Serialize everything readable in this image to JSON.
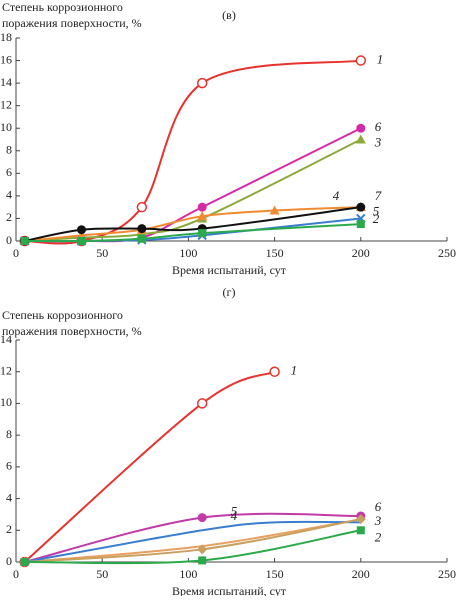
{
  "chart_data": [
    {
      "type": "line",
      "title": "(в)",
      "ylabel": [
        "Степень коррозионного",
        "поражения поверхности, %"
      ],
      "xlabel": "Время испытаний, сут",
      "xlim": [
        0,
        250
      ],
      "xticks": [
        0,
        50,
        100,
        150,
        200,
        250
      ],
      "ylim": [
        0,
        18
      ],
      "yticks": [
        0,
        2,
        4,
        6,
        8,
        10,
        12,
        14,
        16,
        18
      ],
      "series": [
        {
          "name": "1",
          "color": "#e8322e",
          "marker": "open-circle",
          "x": [
            5,
            38,
            73,
            108,
            200
          ],
          "values": [
            0,
            0,
            3,
            14,
            16
          ]
        },
        {
          "name": "6",
          "color": "#d42aa8",
          "marker": "circle",
          "x": [
            5,
            38,
            73,
            108,
            200
          ],
          "values": [
            0,
            0,
            0.3,
            3,
            10
          ]
        },
        {
          "name": "3",
          "color": "#8aaa3a",
          "marker": "triangle",
          "x": [
            5,
            38,
            73,
            108,
            200
          ],
          "values": [
            0,
            0.3,
            0.6,
            2,
            9
          ]
        },
        {
          "name": "4",
          "color": "#f08a30",
          "marker": "triangle",
          "x": [
            5,
            38,
            73,
            108,
            150,
            200
          ],
          "values": [
            0,
            0.5,
            1,
            2.2,
            2.7,
            3
          ]
        },
        {
          "name": "7",
          "color": "#111111",
          "marker": "circle",
          "x": [
            5,
            38,
            73,
            108,
            200
          ],
          "values": [
            0,
            1,
            1.1,
            1.1,
            3
          ]
        },
        {
          "name": "5",
          "color": "#3a7ed0",
          "marker": "cross",
          "x": [
            5,
            38,
            73,
            108,
            200
          ],
          "values": [
            0,
            0,
            0.1,
            0.5,
            2
          ]
        },
        {
          "name": "2",
          "color": "#2aaa4a",
          "marker": "square",
          "x": [
            5,
            38,
            73,
            108,
            200
          ],
          "values": [
            0,
            0,
            0.2,
            0.7,
            1.5
          ]
        }
      ]
    },
    {
      "type": "line",
      "title": "(г)",
      "ylabel": [
        "Степень коррозионного",
        "поражения поверхности, %"
      ],
      "xlabel": "Время испытаний, сут",
      "xlim": [
        0,
        250
      ],
      "xticks": [
        0,
        50,
        100,
        150,
        200,
        250
      ],
      "ylim": [
        0,
        14
      ],
      "yticks": [
        0,
        2,
        4,
        6,
        8,
        10,
        12,
        14
      ],
      "series": [
        {
          "name": "1",
          "color": "#e8322e",
          "marker": "open-circle",
          "x": [
            5,
            108,
            150
          ],
          "values": [
            0,
            10,
            12
          ]
        },
        {
          "name": "6",
          "color": "#c23aa8",
          "marker": "circle",
          "x": [
            5,
            108,
            200
          ],
          "values": [
            0,
            2.8,
            2.9
          ]
        },
        {
          "name": "3",
          "color": "#e8a060",
          "marker": "none",
          "x": [
            5,
            108,
            200
          ],
          "values": [
            0,
            1,
            2.7
          ]
        },
        {
          "name": "5",
          "color": "#3a7ed0",
          "marker": "none",
          "x": [
            5,
            108,
            150,
            200
          ],
          "values": [
            0,
            2,
            2.5,
            2.5
          ]
        },
        {
          "name": "4",
          "color": "#c8a060",
          "marker": "diamond",
          "x": [
            5,
            108,
            200
          ],
          "values": [
            0,
            0.8,
            2.7
          ]
        },
        {
          "name": "2",
          "color": "#2aaa4a",
          "marker": "square",
          "x": [
            5,
            108,
            200
          ],
          "values": [
            0,
            0.1,
            2
          ]
        }
      ]
    }
  ]
}
